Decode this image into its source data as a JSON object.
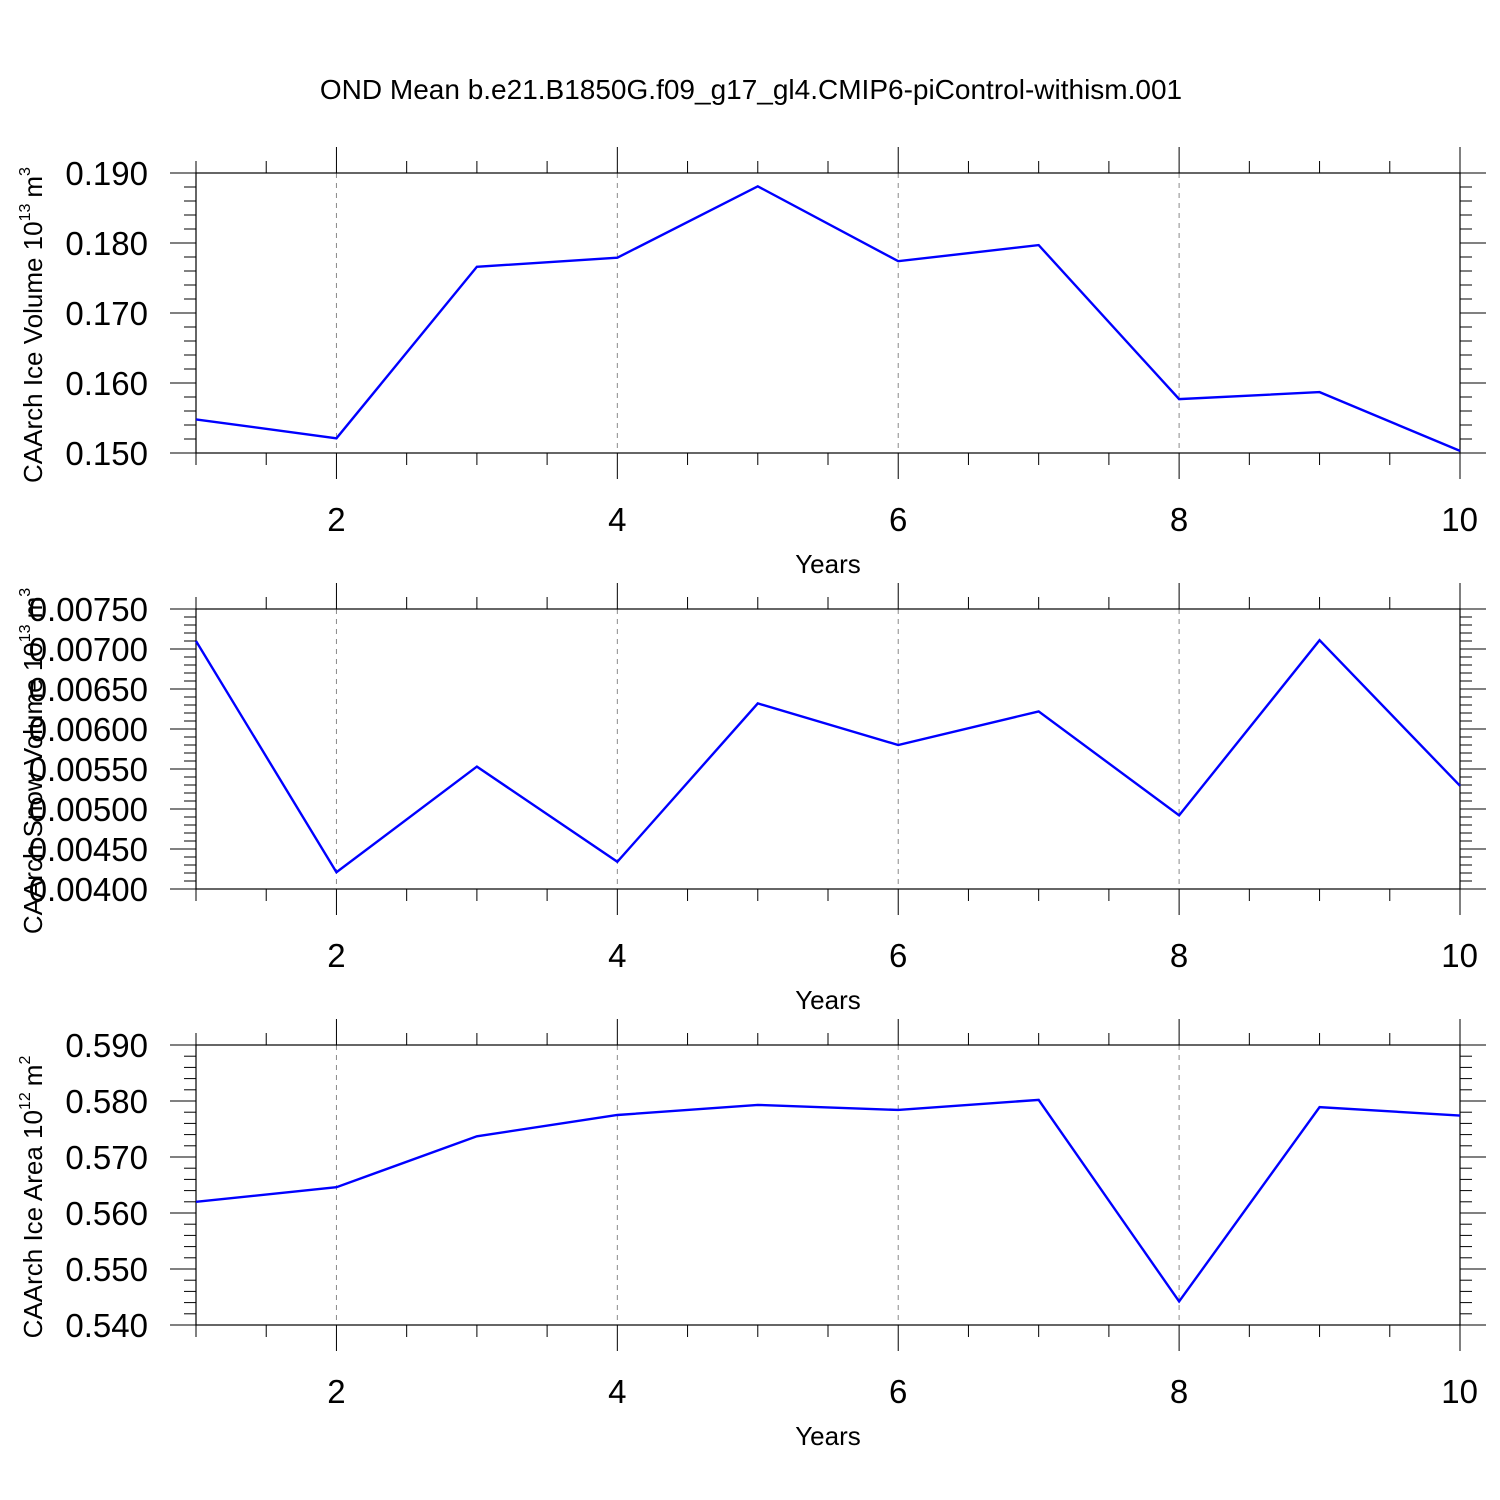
{
  "title": "OND Mean b.e21.B1850G.f09_g17_gl4.CMIP6-piControl-withism.001",
  "colors": {
    "series": "#0000ff",
    "grid": "#8a8a8a",
    "axis": "#000000"
  },
  "chart_data": [
    {
      "type": "line",
      "xlabel": "Years",
      "ylabel": {
        "text": "CAArch Ice Volume 10",
        "exponent": "13",
        "unit": "m",
        "unit_exponent": "3"
      },
      "x": [
        1,
        2,
        3,
        4,
        5,
        6,
        7,
        8,
        9,
        10
      ],
      "series": [
        {
          "values": [
            0.1548,
            0.1521,
            0.1766,
            0.1779,
            0.1881,
            0.1774,
            0.1797,
            0.1577,
            0.1587,
            0.1503
          ]
        }
      ],
      "xlim": [
        1,
        10
      ],
      "ylim": [
        0.15,
        0.19
      ],
      "xticks": [
        2,
        4,
        6,
        8,
        10
      ],
      "xtick_labels": [
        "2",
        "4",
        "6",
        "8",
        "10"
      ],
      "yticks": [
        0.15,
        0.16,
        0.17,
        0.18,
        0.19
      ],
      "ytick_labels": [
        "0.150",
        "0.160",
        "0.170",
        "0.180",
        "0.190"
      ],
      "grid": "vertical dashed"
    },
    {
      "type": "line",
      "xlabel": "Years",
      "ylabel": {
        "text": "CAArch Snow Volume 10",
        "exponent": "13",
        "unit": "m",
        "unit_exponent": "3"
      },
      "x": [
        1,
        2,
        3,
        4,
        5,
        6,
        7,
        8,
        9,
        10
      ],
      "series": [
        {
          "values": [
            0.0071,
            0.00421,
            0.00553,
            0.00434,
            0.00632,
            0.0058,
            0.00622,
            0.00492,
            0.00711,
            0.00529
          ]
        }
      ],
      "xlim": [
        1,
        10
      ],
      "ylim": [
        0.004,
        0.0075
      ],
      "xticks": [
        2,
        4,
        6,
        8,
        10
      ],
      "xtick_labels": [
        "2",
        "4",
        "6",
        "8",
        "10"
      ],
      "yticks": [
        0.004,
        0.0045,
        0.005,
        0.0055,
        0.006,
        0.0065,
        0.007,
        0.0075
      ],
      "ytick_labels": [
        "0.00400",
        "0.00450",
        "0.00500",
        "0.00550",
        "0.00600",
        "0.00650",
        "0.00700",
        "0.00750"
      ],
      "grid": "vertical dashed"
    },
    {
      "type": "line",
      "xlabel": "Years",
      "ylabel": {
        "text": "CAArch Ice Area 10",
        "exponent": "12",
        "unit": "m",
        "unit_exponent": "2"
      },
      "x": [
        1,
        2,
        3,
        4,
        5,
        6,
        7,
        8,
        9,
        10
      ],
      "series": [
        {
          "values": [
            0.562,
            0.5646,
            0.5737,
            0.5775,
            0.5793,
            0.5784,
            0.5802,
            0.5442,
            0.5789,
            0.5774
          ]
        }
      ],
      "xlim": [
        1,
        10
      ],
      "ylim": [
        0.54,
        0.59
      ],
      "xticks": [
        2,
        4,
        6,
        8,
        10
      ],
      "xtick_labels": [
        "2",
        "4",
        "6",
        "8",
        "10"
      ],
      "yticks": [
        0.54,
        0.55,
        0.56,
        0.57,
        0.58,
        0.59
      ],
      "ytick_labels": [
        "0.540",
        "0.550",
        "0.560",
        "0.570",
        "0.580",
        "0.590"
      ],
      "grid": "vertical dashed"
    }
  ]
}
